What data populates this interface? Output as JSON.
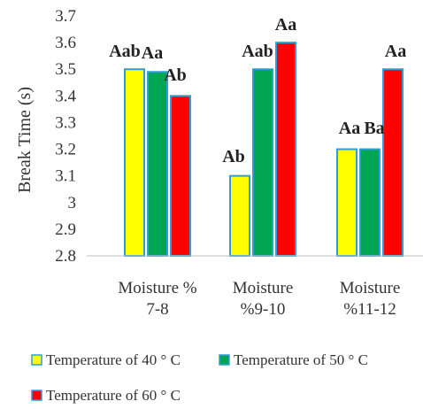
{
  "chart_data": {
    "type": "bar",
    "title": "",
    "xlabel": "",
    "ylabel": "Break Time (s)",
    "ylim": [
      2.8,
      3.7
    ],
    "yticks": [
      2.8,
      2.9,
      3,
      3.1,
      3.2,
      3.3,
      3.4,
      3.5,
      3.6,
      3.7
    ],
    "grid": false,
    "legend_position": "bottom",
    "categories": [
      [
        "Moisture %",
        "7-8"
      ],
      [
        "Moisture",
        "%9-10"
      ],
      [
        "Moisture",
        "%11-12"
      ]
    ],
    "series": [
      {
        "name": "Temperature of 40 ° C",
        "color": "#ffff00",
        "values": [
          3.5,
          3.1,
          3.2
        ],
        "labels": [
          "Aab",
          "Ab",
          "Aa"
        ]
      },
      {
        "name": "Temperature of 50 ° C",
        "color": "#00a651",
        "values": [
          3.49,
          3.5,
          3.2
        ],
        "labels": [
          "Aa",
          "Aab",
          "Ba"
        ]
      },
      {
        "name": "Temperature of 60 ° C",
        "color": "#ff0000",
        "values": [
          3.4,
          3.6,
          3.5
        ],
        "labels": [
          "Ab",
          "Aa",
          "Aa"
        ]
      }
    ],
    "bar_outline_color": "#2e9fd6"
  }
}
